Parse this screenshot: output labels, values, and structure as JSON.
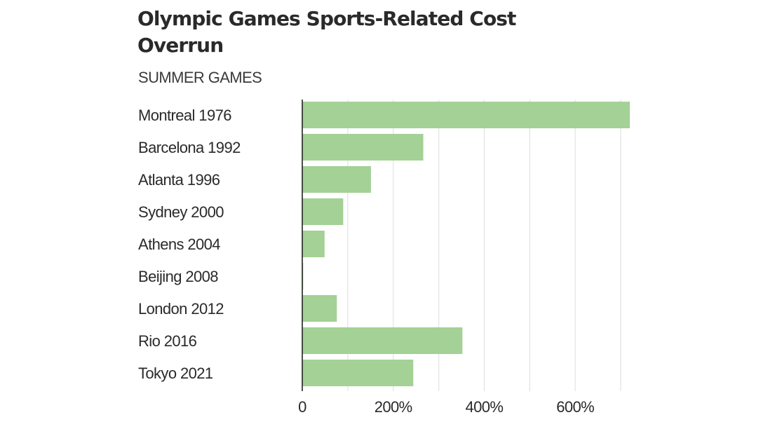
{
  "chart_data": {
    "type": "bar",
    "orientation": "horizontal",
    "title": "Olympic Games Sports-Related Cost Overrun",
    "subtitle": "SUMMER GAMES",
    "categories": [
      "Montreal 1976",
      "Barcelona 1992",
      "Atlanta 1996",
      "Sydney 2000",
      "Athens 2004",
      "Beijing 2008",
      "London 2012",
      "Rio 2016",
      "Tokyo 2021"
    ],
    "values": [
      720,
      266,
      151,
      90,
      49,
      2,
      76,
      352,
      244
    ],
    "xlim": [
      0,
      720
    ],
    "xticks": [
      0,
      200,
      400,
      600
    ],
    "xtick_labels": [
      "0",
      "200%",
      "400%",
      "600%"
    ],
    "grid": true,
    "legend": "none",
    "bar_color": "#a3d196",
    "baseline_color": "#222222",
    "grid_color": "#e2e2e2"
  }
}
